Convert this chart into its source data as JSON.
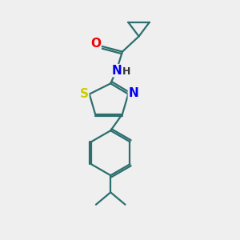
{
  "bg_color": "#efefef",
  "bond_color": "#2d6e6e",
  "bond_width": 1.6,
  "atom_colors": {
    "N": "#0000ee",
    "O": "#ee0000",
    "S": "#cccc00",
    "H": "#333333"
  },
  "font_size": 10,
  "figsize": [
    3.0,
    3.0
  ],
  "dpi": 100,
  "xlim": [
    0,
    10
  ],
  "ylim": [
    0,
    10
  ]
}
